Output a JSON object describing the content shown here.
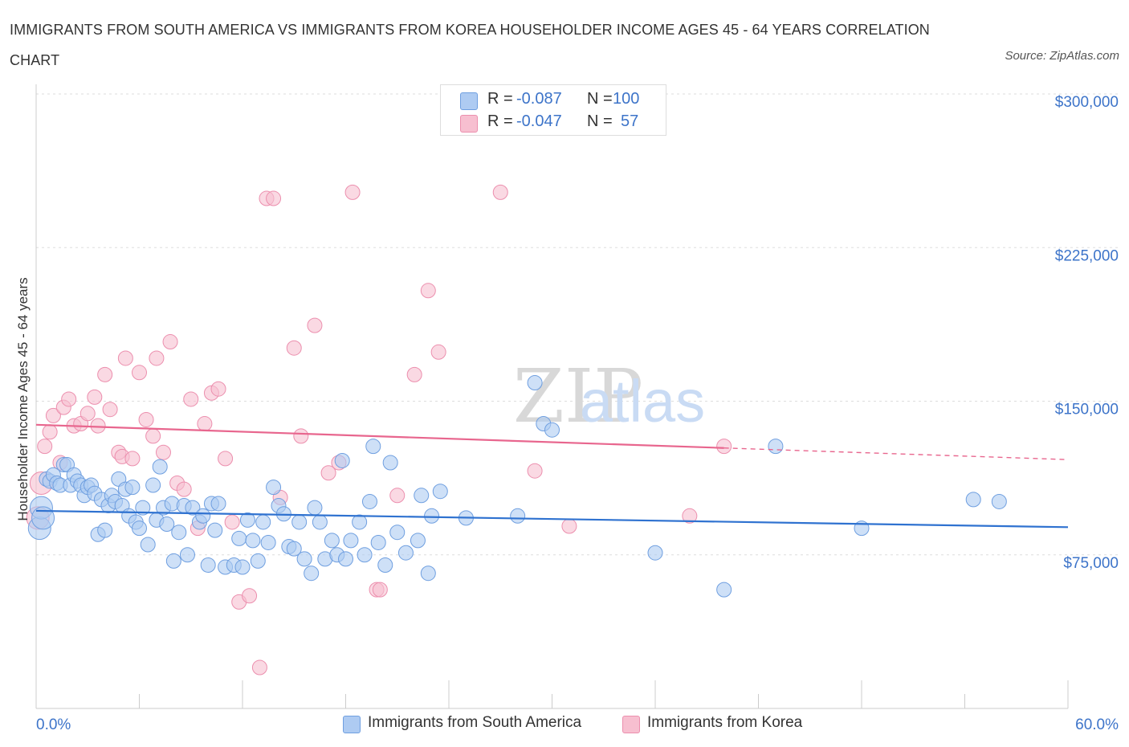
{
  "title": "IMMIGRANTS FROM SOUTH AMERICA VS IMMIGRANTS FROM KOREA HOUSEHOLDER INCOME AGES 45 - 64 YEARS CORRELATION CHART",
  "source": "Source: ZipAtlas.com",
  "watermark": "ZIPatlas",
  "colors": {
    "blue_fill": "#aecbf2",
    "blue_stroke": "#6f9fe0",
    "blue_line": "#2f72d0",
    "pink_fill": "#f7bfd0",
    "pink_stroke": "#ec8fae",
    "pink_line": "#e8668e",
    "grid": "#dddddd",
    "tick_text": "#3d74c9"
  },
  "legend": {
    "rows": [
      {
        "r_label": "R =",
        "r_value": "-0.087",
        "n_label": "N =",
        "n_value": "100"
      },
      {
        "r_label": "R =",
        "r_value": "-0.047",
        "n_label": "N =",
        "n_value": "57"
      }
    ]
  },
  "chart_data": {
    "type": "scatter",
    "ylabel": "Householder Income Ages 45 - 64 years",
    "xlim": [
      0,
      60
    ],
    "ylim": [
      0,
      300000
    ],
    "x_tick_labels": [
      "0.0%",
      "60.0%"
    ],
    "y_ticks": [
      75000,
      150000,
      225000,
      300000
    ],
    "y_tick_labels": [
      "$75,000",
      "$150,000",
      "$225,000",
      "$300,000"
    ],
    "grid": true,
    "legend_position": "top-center",
    "series": [
      {
        "name": "Immigrants from South America",
        "color": "blue",
        "trend": {
          "x0": 0,
          "y0": 96500,
          "x1": 60,
          "y1": 88500,
          "solid_until": 60
        },
        "points": [
          [
            0.2,
            88000
          ],
          [
            0.3,
            98000
          ],
          [
            0.4,
            93000
          ],
          [
            0.6,
            112000
          ],
          [
            0.8,
            111000
          ],
          [
            1.0,
            114000
          ],
          [
            1.2,
            110000
          ],
          [
            1.4,
            109000
          ],
          [
            1.6,
            119000
          ],
          [
            1.8,
            119000
          ],
          [
            2.0,
            109000
          ],
          [
            2.2,
            114000
          ],
          [
            2.4,
            111000
          ],
          [
            2.6,
            109000
          ],
          [
            2.8,
            104000
          ],
          [
            3.0,
            108000
          ],
          [
            3.2,
            109000
          ],
          [
            3.4,
            105000
          ],
          [
            3.6,
            85000
          ],
          [
            3.8,
            102000
          ],
          [
            4.0,
            87000
          ],
          [
            4.2,
            99000
          ],
          [
            4.4,
            104000
          ],
          [
            4.6,
            101000
          ],
          [
            4.8,
            112000
          ],
          [
            5.0,
            99000
          ],
          [
            5.2,
            107000
          ],
          [
            5.4,
            94000
          ],
          [
            5.6,
            108000
          ],
          [
            5.8,
            91000
          ],
          [
            6.0,
            88000
          ],
          [
            6.2,
            98000
          ],
          [
            6.5,
            80000
          ],
          [
            6.8,
            109000
          ],
          [
            7.0,
            92000
          ],
          [
            7.2,
            118000
          ],
          [
            7.4,
            98000
          ],
          [
            7.6,
            90000
          ],
          [
            7.9,
            100000
          ],
          [
            8.0,
            72000
          ],
          [
            8.3,
            86000
          ],
          [
            8.6,
            99000
          ],
          [
            8.8,
            75000
          ],
          [
            9.1,
            98000
          ],
          [
            9.5,
            91000
          ],
          [
            9.7,
            94000
          ],
          [
            10.0,
            70000
          ],
          [
            10.2,
            100000
          ],
          [
            10.4,
            87000
          ],
          [
            10.6,
            100000
          ],
          [
            11.0,
            69000
          ],
          [
            11.5,
            70000
          ],
          [
            11.8,
            83000
          ],
          [
            12.0,
            69000
          ],
          [
            12.3,
            92000
          ],
          [
            12.6,
            82000
          ],
          [
            12.9,
            72000
          ],
          [
            13.2,
            91000
          ],
          [
            13.5,
            81000
          ],
          [
            13.8,
            108000
          ],
          [
            14.1,
            99000
          ],
          [
            14.4,
            95000
          ],
          [
            14.7,
            79000
          ],
          [
            15.0,
            78000
          ],
          [
            15.3,
            91000
          ],
          [
            15.6,
            73000
          ],
          [
            16.0,
            66000
          ],
          [
            16.2,
            98000
          ],
          [
            16.5,
            91000
          ],
          [
            16.8,
            73000
          ],
          [
            17.2,
            82000
          ],
          [
            17.5,
            75000
          ],
          [
            17.8,
            121000
          ],
          [
            18.0,
            73000
          ],
          [
            18.3,
            82000
          ],
          [
            18.8,
            91000
          ],
          [
            19.1,
            75000
          ],
          [
            19.4,
            101000
          ],
          [
            19.6,
            128000
          ],
          [
            19.9,
            81000
          ],
          [
            20.3,
            70000
          ],
          [
            20.6,
            120000
          ],
          [
            21.0,
            86000
          ],
          [
            21.5,
            76000
          ],
          [
            22.2,
            82000
          ],
          [
            22.4,
            104000
          ],
          [
            22.8,
            66000
          ],
          [
            23.0,
            94000
          ],
          [
            23.5,
            106000
          ],
          [
            25.0,
            93000
          ],
          [
            28.0,
            94000
          ],
          [
            29.0,
            159000
          ],
          [
            29.5,
            139000
          ],
          [
            30.0,
            136000
          ],
          [
            36.0,
            76000
          ],
          [
            40.0,
            58000
          ],
          [
            43.0,
            128000
          ],
          [
            48.0,
            88000
          ],
          [
            54.5,
            102000
          ],
          [
            56.0,
            101000
          ]
        ]
      },
      {
        "name": "Immigrants from Korea",
        "color": "pink",
        "trend": {
          "x0": 0,
          "y0": 138500,
          "x1": 60,
          "y1": 121500,
          "solid_until": 40
        },
        "points": [
          [
            0.1,
            93000
          ],
          [
            0.3,
            110000
          ],
          [
            0.5,
            128000
          ],
          [
            0.8,
            135000
          ],
          [
            1.0,
            143000
          ],
          [
            1.4,
            120000
          ],
          [
            1.6,
            147000
          ],
          [
            1.9,
            151000
          ],
          [
            2.2,
            138000
          ],
          [
            2.6,
            139000
          ],
          [
            3.0,
            144000
          ],
          [
            3.4,
            152000
          ],
          [
            3.6,
            138000
          ],
          [
            4.0,
            163000
          ],
          [
            4.3,
            146000
          ],
          [
            4.8,
            125000
          ],
          [
            5.0,
            123000
          ],
          [
            5.2,
            171000
          ],
          [
            5.6,
            122000
          ],
          [
            6.0,
            164000
          ],
          [
            6.4,
            141000
          ],
          [
            6.8,
            133000
          ],
          [
            7.0,
            171000
          ],
          [
            7.4,
            125000
          ],
          [
            7.8,
            179000
          ],
          [
            8.2,
            110000
          ],
          [
            8.6,
            107000
          ],
          [
            9.0,
            151000
          ],
          [
            9.4,
            88000
          ],
          [
            9.8,
            139000
          ],
          [
            10.2,
            154000
          ],
          [
            10.6,
            156000
          ],
          [
            11.0,
            122000
          ],
          [
            11.4,
            91000
          ],
          [
            11.8,
            52000
          ],
          [
            12.4,
            55000
          ],
          [
            13.0,
            20000
          ],
          [
            13.4,
            249000
          ],
          [
            13.8,
            249000
          ],
          [
            14.2,
            103000
          ],
          [
            15.0,
            176000
          ],
          [
            15.4,
            133000
          ],
          [
            16.2,
            187000
          ],
          [
            17.0,
            115000
          ],
          [
            17.6,
            120000
          ],
          [
            18.4,
            252000
          ],
          [
            19.8,
            58000
          ],
          [
            20.0,
            58000
          ],
          [
            21.0,
            104000
          ],
          [
            22.0,
            163000
          ],
          [
            22.8,
            204000
          ],
          [
            23.4,
            174000
          ],
          [
            27.0,
            252000
          ],
          [
            29.0,
            116000
          ],
          [
            31.0,
            89000
          ],
          [
            38.0,
            94000
          ],
          [
            40.0,
            128000
          ]
        ]
      }
    ]
  },
  "bottom_legend": [
    {
      "label": "Immigrants from South America",
      "color": "blue"
    },
    {
      "label": "Immigrants from Korea",
      "color": "pink"
    }
  ]
}
